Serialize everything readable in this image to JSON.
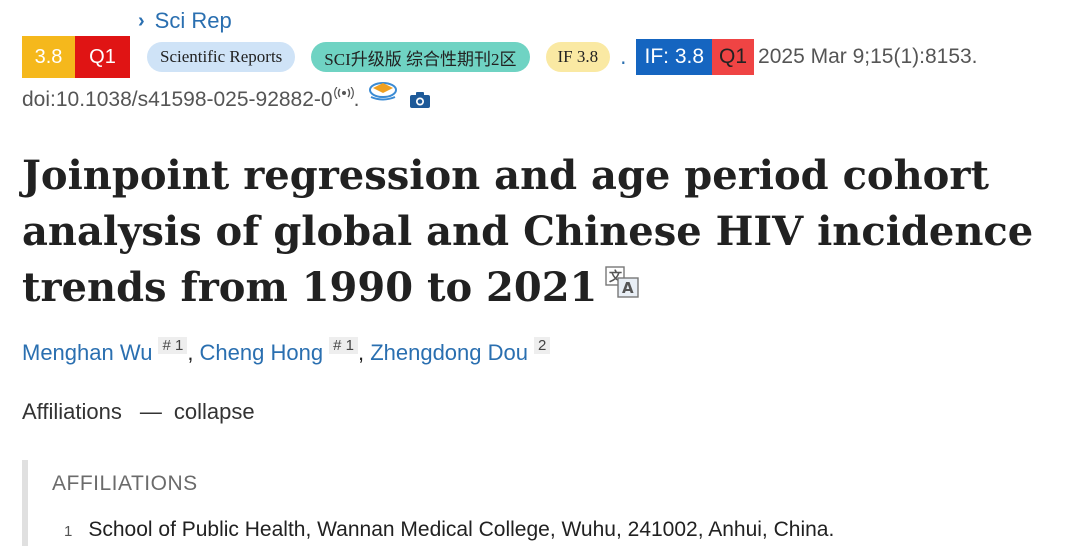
{
  "journal": {
    "chevron": "›",
    "name": "Sci Rep"
  },
  "metrics": {
    "impact_factor": "3.8",
    "quartile": "Q1",
    "journal_full": "Scientific Reports",
    "sci_tag": "SCI升级版 综合性期刊2区",
    "if_pill": "IF 3.8",
    "dot": ".",
    "if_box": "IF: 3.8",
    "q_box": "Q1",
    "citation": "2025 Mar 9;15(1):8153."
  },
  "doi": {
    "prefix": "doi: ",
    "value": "10.1038/s41598-025-92882-0",
    "suffix": "."
  },
  "article": {
    "title": "Joinpoint regression and age period cohort analysis of global and Chinese HIV incidence trends from 1990 to 2021"
  },
  "authors": [
    {
      "name": "Menghan Wu",
      "sup": "# 1"
    },
    {
      "name": "Cheng Hong",
      "sup": "# 1"
    },
    {
      "name": "Zhengdong Dou",
      "sup": "2"
    }
  ],
  "affiliations_toggle": {
    "label": "Affiliations",
    "dash": "—",
    "action": "collapse"
  },
  "affiliations": {
    "heading": "AFFILIATIONS",
    "items": [
      {
        "num": "1",
        "text": "School of Public Health, Wannan Medical College, Wuhu, 241002, Anhui, China."
      }
    ]
  },
  "colors": {
    "link": "#2a6fb0",
    "if_badge": "#f5b81c",
    "q_badge": "#e01414",
    "if_box": "#1565c0",
    "q_box": "#ef4444"
  },
  "icons": [
    "chevron-right-icon",
    "radio-waves-icon",
    "scholar-hat-icon",
    "camera-icon",
    "translate-icon"
  ]
}
